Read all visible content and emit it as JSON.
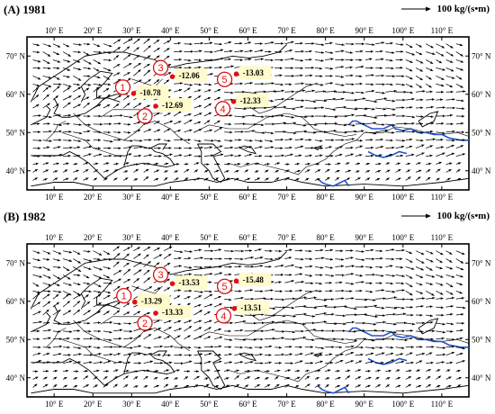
{
  "legend": {
    "text": "100 kg/(s•m)"
  },
  "axes": {
    "lon_labels": [
      "10° E",
      "20° E",
      "30° E",
      "40° E",
      "50° E",
      "60° E",
      "70° E",
      "80° E",
      "90° E",
      "100° E",
      "110° E"
    ],
    "lon_values": [
      10,
      20,
      30,
      40,
      50,
      60,
      70,
      80,
      90,
      100,
      110
    ],
    "lat_labels": [
      "70° N",
      "60° N",
      "50° N",
      "40° N"
    ],
    "lat_values": [
      70,
      60,
      50,
      40
    ],
    "lon_range": [
      3,
      117
    ],
    "lat_range": [
      35,
      75
    ]
  },
  "panels": [
    {
      "title": "(A) 1981",
      "points": [
        {
          "id": "1",
          "value": "-10.78",
          "lon": 30.5,
          "lat": 60.2
        },
        {
          "id": "2",
          "value": "-12.69",
          "lon": 36.2,
          "lat": 56.9
        },
        {
          "id": "3",
          "value": "-12.06",
          "lon": 40.5,
          "lat": 64.6
        },
        {
          "id": "4",
          "value": "-12.33",
          "lon": 56.3,
          "lat": 58.1
        },
        {
          "id": "5",
          "value": "-13.03",
          "lon": 57.0,
          "lat": 65.3
        }
      ]
    },
    {
      "title": "(B) 1982",
      "points": [
        {
          "id": "1",
          "value": "-13.29",
          "lon": 30.8,
          "lat": 59.8
        },
        {
          "id": "2",
          "value": "-13.33",
          "lon": 36.2,
          "lat": 56.9
        },
        {
          "id": "3",
          "value": "-13.53",
          "lon": 40.5,
          "lat": 64.6
        },
        {
          "id": "4",
          "value": "-13.51",
          "lon": 56.5,
          "lat": 58.1
        },
        {
          "id": "5",
          "value": "-15.48",
          "lon": 57.0,
          "lat": 65.3
        }
      ]
    }
  ],
  "colors": {
    "point": "#e01010",
    "label_bg": "#fffbcc",
    "river": "#2255cc",
    "arrow": "#000000"
  }
}
